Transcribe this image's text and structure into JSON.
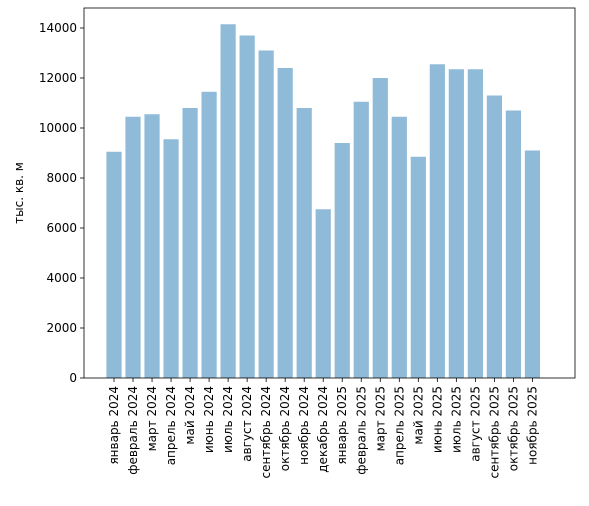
{
  "chart_data": {
    "type": "bar",
    "title": "",
    "xlabel": "",
    "ylabel": "тыс. кв. м",
    "ylim": [
      0,
      14800
    ],
    "yticks": [
      0,
      2000,
      4000,
      6000,
      8000,
      10000,
      12000,
      14000
    ],
    "grid": false,
    "bar_color": "#8fbbd9",
    "categories": [
      "январь 2024",
      "февраль 2024",
      "март 2024",
      "апрель 2024",
      "май 2024",
      "июнь 2024",
      "июль 2024",
      "август 2024",
      "сентябрь 2024",
      "октябрь 2024",
      "ноябрь 2024",
      "декабрь 2024",
      "январь 2025",
      "февраль 2025",
      "март 2025",
      "апрель 2025",
      "май 2025",
      "июнь 2025",
      "июль 2025",
      "август 2025",
      "сентябрь 2025",
      "октябрь 2025",
      "ноябрь 2025"
    ],
    "values": [
      9050,
      10450,
      10550,
      9550,
      10800,
      11450,
      14150,
      13700,
      13100,
      12400,
      10800,
      6750,
      9400,
      11050,
      12000,
      10450,
      8850,
      12550,
      12350,
      12350,
      11300,
      10700,
      9100
    ]
  }
}
